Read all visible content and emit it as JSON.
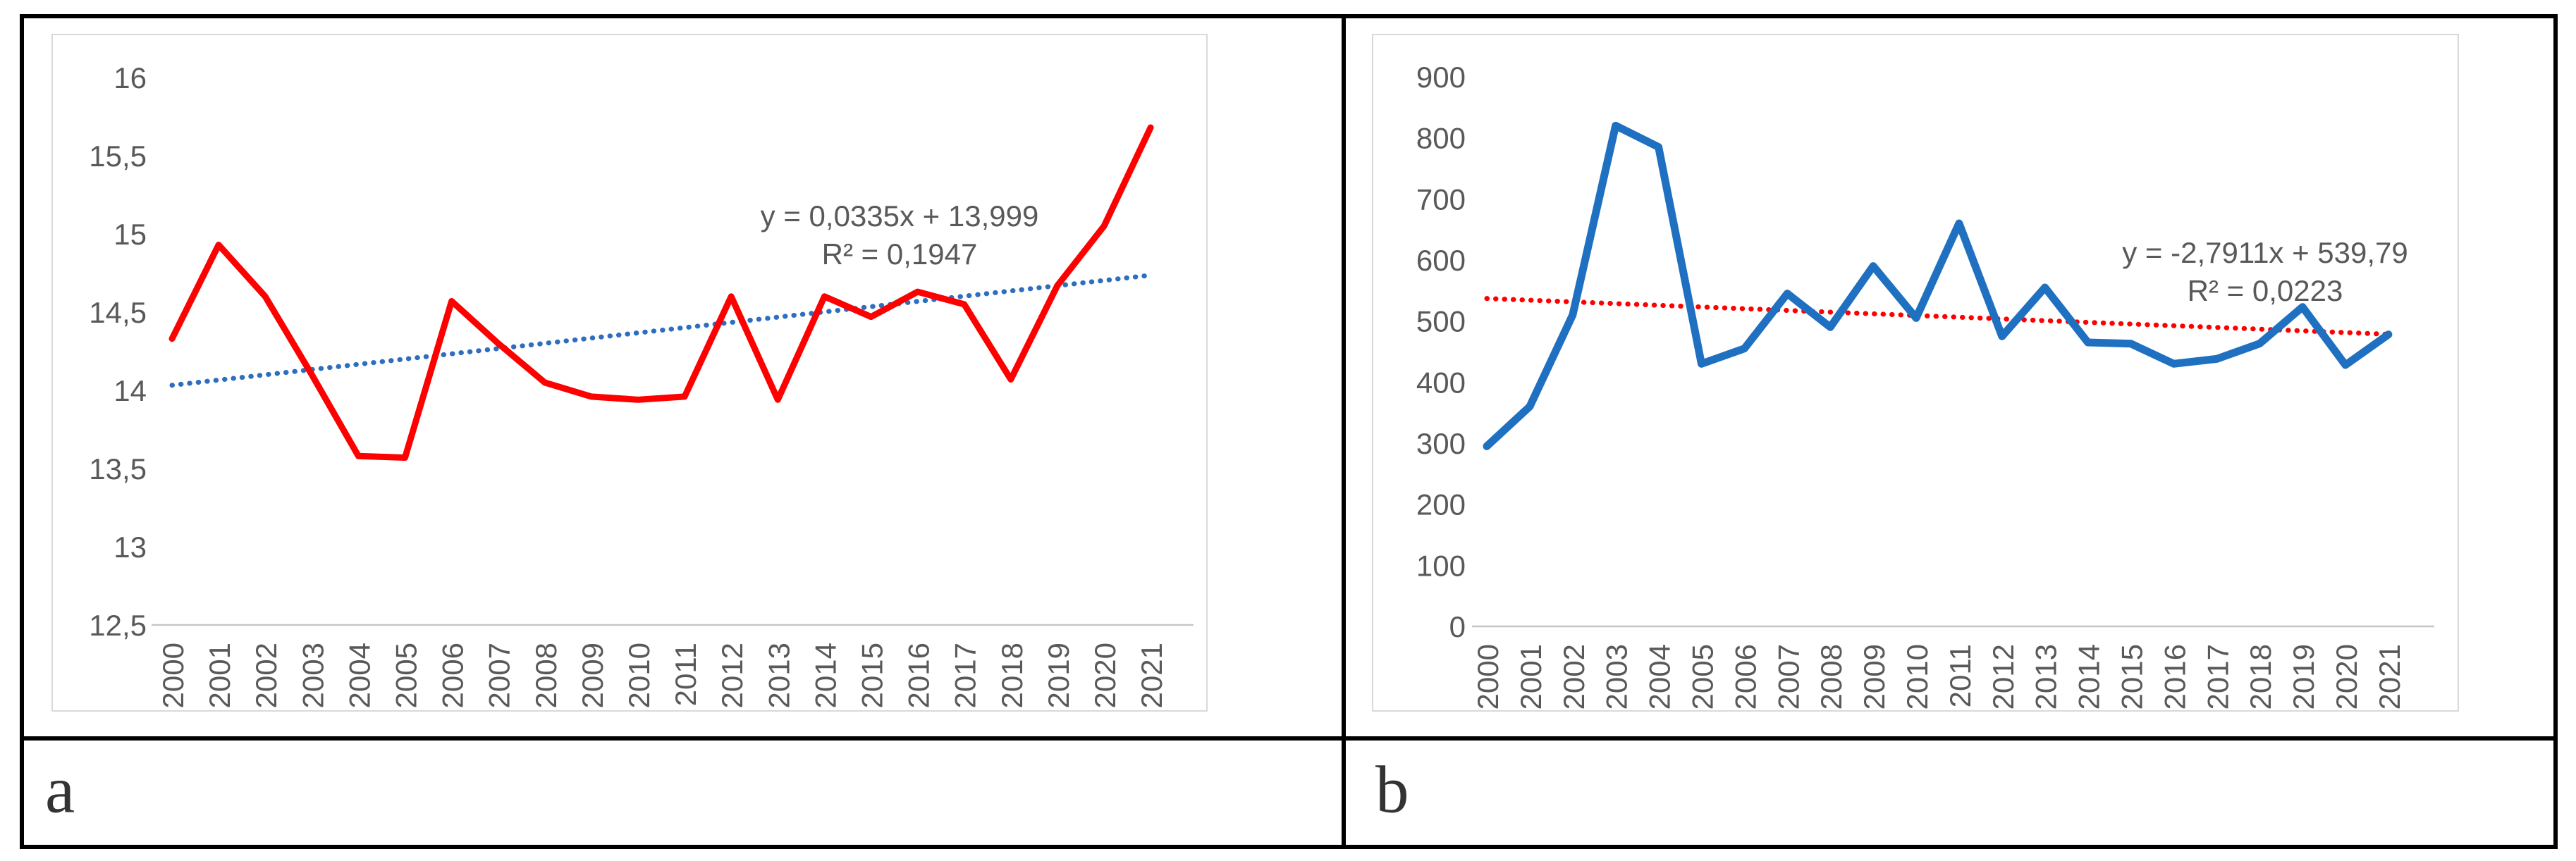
{
  "panel_labels": {
    "a": "a",
    "b": "b"
  },
  "colors": {
    "series_red": "#FF0000",
    "series_blue": "#1F70C1",
    "trend_blue": "#2D6EBE",
    "trend_red": "#FF0000",
    "axis_line": "#C6C6C6",
    "tick_text": "#595959",
    "table_border": "#000000",
    "chart_frame": "#D9D9D9"
  },
  "chart_data": [
    {
      "id": "a",
      "type": "line",
      "title": "",
      "xlabel": "",
      "ylabel": "",
      "categories": [
        "2000",
        "2001",
        "2002",
        "2003",
        "2004",
        "2005",
        "2006",
        "2007",
        "2008",
        "2009",
        "2010",
        "2011",
        "2012",
        "2013",
        "2014",
        "2015",
        "2016",
        "2017",
        "2018",
        "2019",
        "2020",
        "2021"
      ],
      "values": [
        14.33,
        14.93,
        14.6,
        14.1,
        13.58,
        13.57,
        14.57,
        14.3,
        14.05,
        13.96,
        13.94,
        13.96,
        14.6,
        13.94,
        14.6,
        14.47,
        14.63,
        14.55,
        14.07,
        14.67,
        15.05,
        15.68
      ],
      "ylim": [
        12.5,
        16
      ],
      "y_min": 12.5,
      "y_step": 0.5,
      "y_ticks": [
        "12,5",
        "13",
        "13,5",
        "14",
        "14,5",
        "15",
        "15,5",
        "16"
      ],
      "grid": false,
      "legend": "none",
      "series_color_key": "series_red",
      "trend_color_key": "trend_blue",
      "trendline": {
        "slope": 0.0335,
        "intercept": 13.999
      },
      "equation_line1": "y = 0,0335x + 13,999",
      "equation_line2": "R² = 0,1947"
    },
    {
      "id": "b",
      "type": "line",
      "title": "",
      "xlabel": "",
      "ylabel": "",
      "categories": [
        "2000",
        "2001",
        "2002",
        "2003",
        "2004",
        "2005",
        "2006",
        "2007",
        "2008",
        "2009",
        "2010",
        "2011",
        "2012",
        "2013",
        "2014",
        "2015",
        "2016",
        "2017",
        "2018",
        "2019",
        "2020",
        "2021"
      ],
      "values": [
        295,
        360,
        510,
        820,
        785,
        430,
        455,
        545,
        490,
        590,
        505,
        660,
        475,
        555,
        465,
        463,
        430,
        438,
        463,
        523,
        428,
        478
      ],
      "ylim": [
        0,
        900
      ],
      "y_min": 0,
      "y_step": 100,
      "y_ticks": [
        "0",
        "100",
        "200",
        "300",
        "400",
        "500",
        "600",
        "700",
        "800",
        "900"
      ],
      "grid": false,
      "legend": "none",
      "series_color_key": "series_blue",
      "trend_color_key": "trend_red",
      "trendline": {
        "slope": -2.7911,
        "intercept": 539.79
      },
      "equation_line1": "y = -2,7911x + 539,79",
      "equation_line2": "R² = 0,0223"
    }
  ]
}
